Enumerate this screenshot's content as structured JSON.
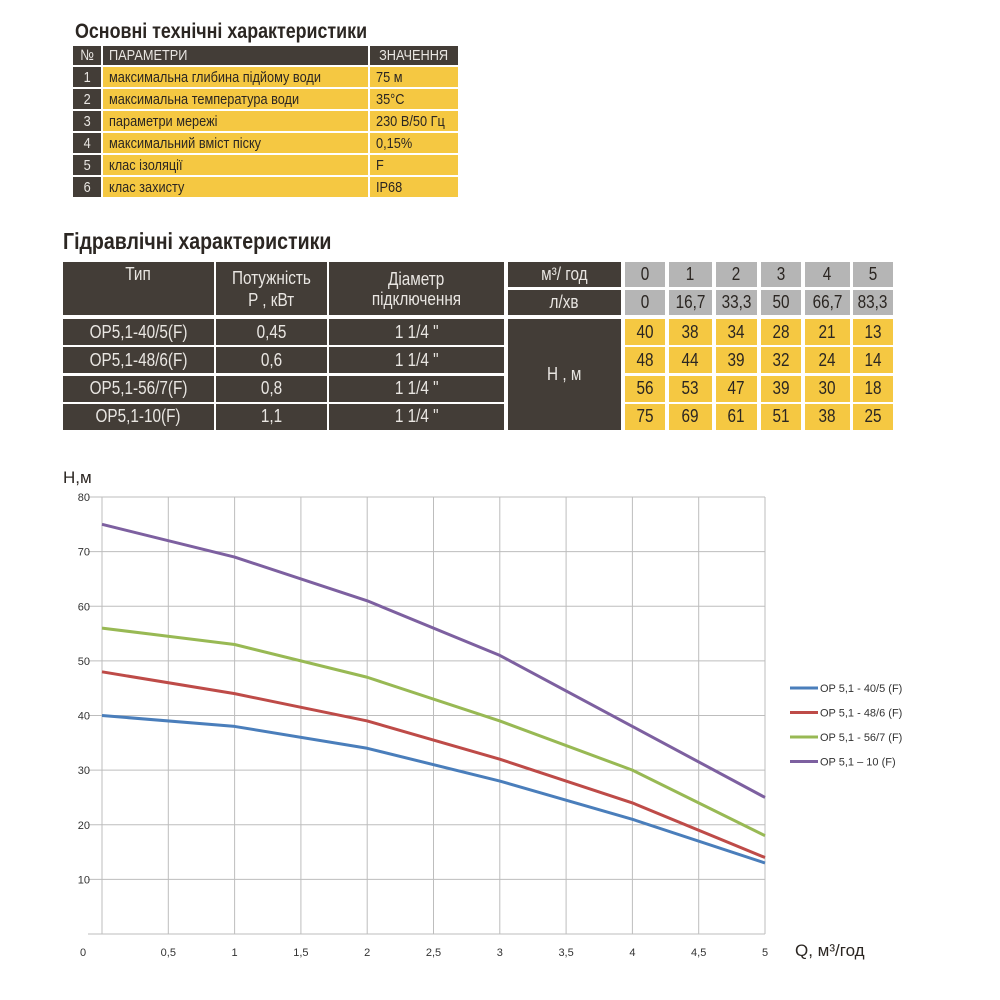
{
  "specs": {
    "title": "Основні технічні характеристики",
    "headers": {
      "num": "№",
      "param": "ПАРАМЕТРИ",
      "value": "ЗНАЧЕННЯ"
    },
    "rows": [
      {
        "num": "1",
        "param": "максимальна глибина підйому води",
        "value": "75 м"
      },
      {
        "num": "2",
        "param": "максимальна температура води",
        "value": "35°C"
      },
      {
        "num": "3",
        "param": "параметри мережі",
        "value": "230 В/50 Гц"
      },
      {
        "num": "4",
        "param": "максимальний вміст піску",
        "value": "0,15%"
      },
      {
        "num": "5",
        "param": "клас ізоляції",
        "value": "F"
      },
      {
        "num": "6",
        "param": "клас захисту",
        "value": "IP68"
      }
    ]
  },
  "hydraulic": {
    "title": "Гідравлічні характеристики",
    "headers": {
      "type": "Тип",
      "power1": "Потужність",
      "power2": "P , кВт",
      "diam1": "Діаметр",
      "diam2": "підключення",
      "unit_m3": "м³/ год",
      "unit_lmin": "л/хв",
      "unit_h": "H , м"
    },
    "flow_m3h": [
      "0",
      "1",
      "2",
      "3",
      "4",
      "5"
    ],
    "flow_lmin": [
      "0",
      "16,7",
      "33,3",
      "50",
      "66,7",
      "83,3"
    ],
    "rows": [
      {
        "type": "OP5,1-40/5(F)",
        "power": "0,45",
        "diam": "1 1/4 \"",
        "h": [
          "40",
          "38",
          "34",
          "28",
          "21",
          "13"
        ]
      },
      {
        "type": "OP5,1-48/6(F)",
        "power": "0,6",
        "diam": "1 1/4 \"",
        "h": [
          "48",
          "44",
          "39",
          "32",
          "24",
          "14"
        ]
      },
      {
        "type": "OP5,1-56/7(F)",
        "power": "0,8",
        "diam": "1 1/4 \"",
        "h": [
          "56",
          "53",
          "47",
          "39",
          "30",
          "18"
        ]
      },
      {
        "type": "OP5,1-10(F)",
        "power": "1,1",
        "diam": "1 1/4 \"",
        "h": [
          "75",
          "69",
          "61",
          "51",
          "38",
          "25"
        ]
      }
    ]
  },
  "chart_data": {
    "type": "line",
    "ylabel": "H,м",
    "xlabel": "Q, м³/год",
    "xlim": [
      0,
      5
    ],
    "ylim": [
      0,
      80
    ],
    "x_ticks": [
      "0",
      "0,5",
      "1",
      "1,5",
      "2",
      "2,5",
      "3",
      "3,5",
      "4",
      "4,5",
      "5"
    ],
    "y_ticks": [
      "10",
      "20",
      "30",
      "40",
      "50",
      "60",
      "70",
      "80"
    ],
    "grid": true,
    "legend": "right",
    "x": [
      0,
      1,
      2,
      3,
      4,
      5
    ],
    "series": [
      {
        "name": "OP 5,1 - 40/5 (F)",
        "color": "#4a7ebb",
        "values": [
          40,
          38,
          34,
          28,
          21,
          13
        ]
      },
      {
        "name": "OP 5,1 - 48/6 (F)",
        "color": "#be4b48",
        "values": [
          48,
          44,
          39,
          32,
          24,
          14
        ]
      },
      {
        "name": "OP 5,1 - 56/7 (F)",
        "color": "#98b954",
        "values": [
          56,
          53,
          47,
          39,
          30,
          18
        ]
      },
      {
        "name": "OP 5,1 – 10 (F)",
        "color": "#7d60a0",
        "values": [
          75,
          69,
          61,
          51,
          38,
          25
        ]
      }
    ]
  }
}
